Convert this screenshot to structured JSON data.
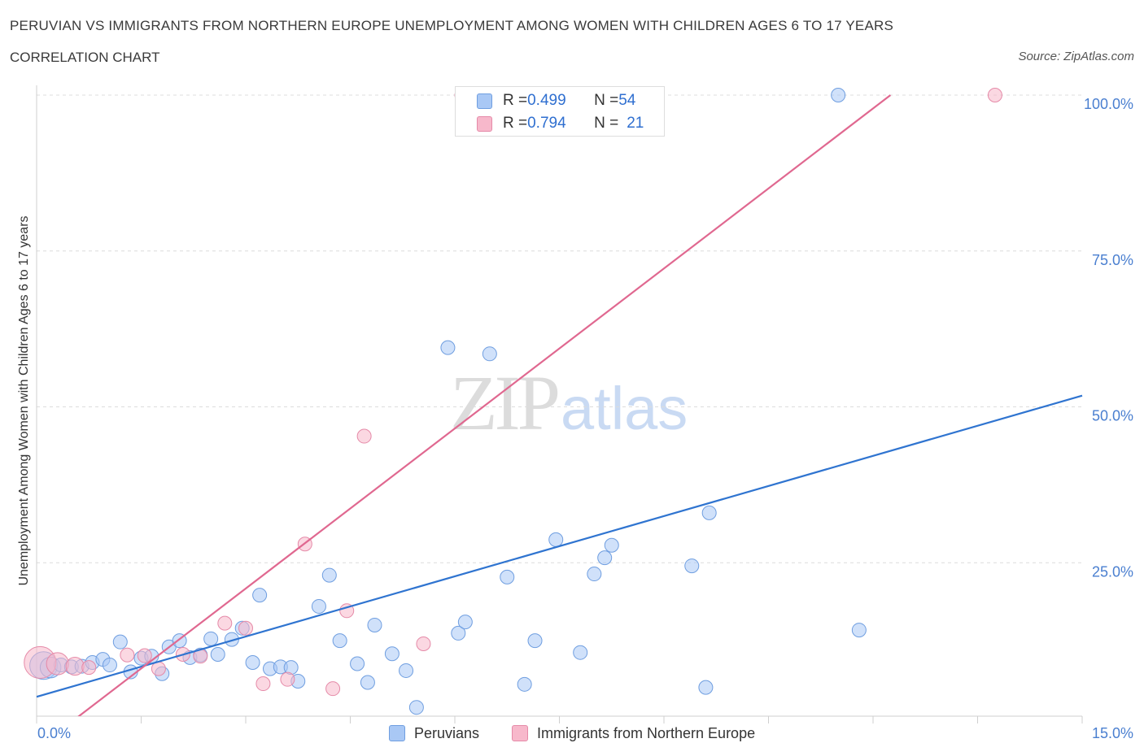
{
  "header": {
    "title": "PERUVIAN VS IMMIGRANTS FROM NORTHERN EUROPE UNEMPLOYMENT AMONG WOMEN WITH CHILDREN AGES 6 TO 17 YEARS",
    "subtitle": "CORRELATION CHART",
    "source": "Source: ZipAtlas.com"
  },
  "watermark": {
    "zip": "ZIP",
    "atlas": "atlas"
  },
  "legend": {
    "rows": [
      {
        "r_label": "R = ",
        "r_value": "0.499",
        "n_label": "N = ",
        "n_value": "54",
        "color": "#a9c8f5"
      },
      {
        "r_label": "R = ",
        "r_value": "0.794",
        "n_label": "N = ",
        "n_value": "21",
        "color": "#f7b8cb"
      }
    ]
  },
  "bottom_legend": {
    "series1": "Peruvians",
    "series2": "Immigrants from Northern Europe"
  },
  "colors": {
    "peruvians_fill": "#a9c8f5",
    "peruvians_stroke": "#6f9ee0",
    "peruvians_line": "#2f74d0",
    "immigrants_fill": "#f7b8cb",
    "immigrants_stroke": "#e58aa8",
    "immigrants_line": "#e06890",
    "grid": "#dcdcdc",
    "tick_label": "#4a7fd0"
  },
  "chart_data": {
    "type": "scatter",
    "title": "PERUVIAN VS IMMIGRANTS FROM NORTHERN EUROPE UNEMPLOYMENT AMONG WOMEN WITH CHILDREN AGES 6 TO 17 YEARS",
    "xlabel": "",
    "ylabel": "Unemployment Among Women with Children Ages 6 to 17 years",
    "xlim": [
      0,
      15
    ],
    "ylim": [
      0,
      100
    ],
    "x_ticks": [
      0,
      15
    ],
    "x_tick_labels": [
      "0.0%",
      "15.0%"
    ],
    "y_ticks": [
      25,
      50,
      75,
      100
    ],
    "y_tick_labels": [
      "25.0%",
      "50.0%",
      "75.0%",
      "100.0%"
    ],
    "grid": true,
    "legend_placement": "top-center",
    "series": [
      {
        "name": "Peruvians",
        "R": 0.499,
        "N": 54,
        "trend": {
          "x": [
            0,
            15
          ],
          "y": [
            3.5,
            51.8
          ]
        },
        "points": [
          {
            "x": 0.1,
            "y": 8.5,
            "s": 2
          },
          {
            "x": 0.2,
            "y": 8.2,
            "s": 1.5
          },
          {
            "x": 0.35,
            "y": 8.6,
            "s": 1
          },
          {
            "x": 0.5,
            "y": 8.3,
            "s": 1
          },
          {
            "x": 0.65,
            "y": 8.4,
            "s": 1
          },
          {
            "x": 0.8,
            "y": 9.0,
            "s": 1
          },
          {
            "x": 0.95,
            "y": 9.5,
            "s": 1
          },
          {
            "x": 1.05,
            "y": 8.6,
            "s": 1
          },
          {
            "x": 1.2,
            "y": 12.3,
            "s": 1
          },
          {
            "x": 1.35,
            "y": 7.5,
            "s": 1
          },
          {
            "x": 1.5,
            "y": 9.7,
            "s": 1
          },
          {
            "x": 1.65,
            "y": 10.0,
            "s": 1
          },
          {
            "x": 1.8,
            "y": 7.2,
            "s": 1
          },
          {
            "x": 1.9,
            "y": 11.5,
            "s": 1
          },
          {
            "x": 2.05,
            "y": 12.5,
            "s": 1
          },
          {
            "x": 2.2,
            "y": 9.8,
            "s": 1
          },
          {
            "x": 2.35,
            "y": 10.2,
            "s": 1
          },
          {
            "x": 2.5,
            "y": 12.8,
            "s": 1
          },
          {
            "x": 2.6,
            "y": 10.3,
            "s": 1
          },
          {
            "x": 2.8,
            "y": 12.7,
            "s": 1
          },
          {
            "x": 2.95,
            "y": 14.5,
            "s": 1
          },
          {
            "x": 3.1,
            "y": 9.0,
            "s": 1
          },
          {
            "x": 3.2,
            "y": 19.8,
            "s": 1
          },
          {
            "x": 3.35,
            "y": 8.0,
            "s": 1
          },
          {
            "x": 3.5,
            "y": 8.3,
            "s": 1
          },
          {
            "x": 3.65,
            "y": 8.2,
            "s": 1
          },
          {
            "x": 3.75,
            "y": 6.0,
            "s": 1
          },
          {
            "x": 4.05,
            "y": 18.0,
            "s": 1
          },
          {
            "x": 4.2,
            "y": 23.0,
            "s": 1
          },
          {
            "x": 4.35,
            "y": 12.5,
            "s": 1
          },
          {
            "x": 4.6,
            "y": 8.8,
            "s": 1
          },
          {
            "x": 4.75,
            "y": 5.8,
            "s": 1
          },
          {
            "x": 4.85,
            "y": 15.0,
            "s": 1
          },
          {
            "x": 5.1,
            "y": 10.4,
            "s": 1
          },
          {
            "x": 5.3,
            "y": 7.7,
            "s": 1
          },
          {
            "x": 5.45,
            "y": 1.8,
            "s": 1
          },
          {
            "x": 5.9,
            "y": 59.5,
            "s": 1
          },
          {
            "x": 6.05,
            "y": 13.7,
            "s": 1
          },
          {
            "x": 6.15,
            "y": 15.5,
            "s": 1
          },
          {
            "x": 6.5,
            "y": 58.5,
            "s": 1
          },
          {
            "x": 6.75,
            "y": 22.7,
            "s": 1
          },
          {
            "x": 7.0,
            "y": 5.5,
            "s": 1
          },
          {
            "x": 7.15,
            "y": 12.5,
            "s": 1
          },
          {
            "x": 7.45,
            "y": 28.7,
            "s": 1
          },
          {
            "x": 7.75,
            "y": 100,
            "s": 1
          },
          {
            "x": 7.8,
            "y": 10.6,
            "s": 1
          },
          {
            "x": 8.0,
            "y": 23.2,
            "s": 1
          },
          {
            "x": 8.15,
            "y": 25.8,
            "s": 1
          },
          {
            "x": 8.25,
            "y": 27.8,
            "s": 1
          },
          {
            "x": 9.4,
            "y": 24.5,
            "s": 1
          },
          {
            "x": 9.6,
            "y": 5.0,
            "s": 1
          },
          {
            "x": 9.65,
            "y": 33.0,
            "s": 1
          },
          {
            "x": 11.5,
            "y": 100,
            "s": 1
          },
          {
            "x": 11.8,
            "y": 14.2,
            "s": 1
          }
        ]
      },
      {
        "name": "Immigrants from Northern Europe",
        "R": 0.794,
        "N": 21,
        "trend": {
          "x": [
            0,
            12.25
          ],
          "y": [
            -4.8,
            100
          ]
        },
        "points": [
          {
            "x": 0.05,
            "y": 9.0,
            "s": 2.3
          },
          {
            "x": 0.3,
            "y": 8.8,
            "s": 1.6
          },
          {
            "x": 0.55,
            "y": 8.4,
            "s": 1.3
          },
          {
            "x": 0.75,
            "y": 8.2,
            "s": 1
          },
          {
            "x": 1.3,
            "y": 10.2,
            "s": 1
          },
          {
            "x": 1.55,
            "y": 10.1,
            "s": 1
          },
          {
            "x": 1.75,
            "y": 8.0,
            "s": 1
          },
          {
            "x": 2.1,
            "y": 10.3,
            "s": 1
          },
          {
            "x": 2.35,
            "y": 10.0,
            "s": 1
          },
          {
            "x": 2.7,
            "y": 15.3,
            "s": 1
          },
          {
            "x": 3.0,
            "y": 14.5,
            "s": 1
          },
          {
            "x": 3.25,
            "y": 5.6,
            "s": 1
          },
          {
            "x": 3.6,
            "y": 6.3,
            "s": 1
          },
          {
            "x": 3.85,
            "y": 28.0,
            "s": 1
          },
          {
            "x": 4.25,
            "y": 4.8,
            "s": 1
          },
          {
            "x": 4.45,
            "y": 17.3,
            "s": 1
          },
          {
            "x": 4.7,
            "y": 45.3,
            "s": 1
          },
          {
            "x": 5.55,
            "y": 12.0,
            "s": 1
          },
          {
            "x": 6.1,
            "y": 100,
            "s": 1
          },
          {
            "x": 7.15,
            "y": 100,
            "s": 1
          },
          {
            "x": 13.75,
            "y": 100,
            "s": 1
          }
        ]
      }
    ]
  }
}
